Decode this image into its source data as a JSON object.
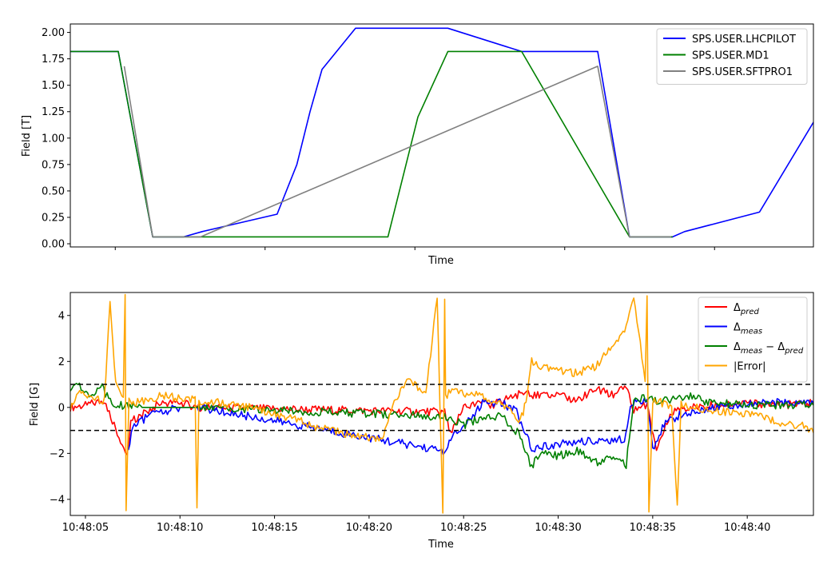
{
  "chart_data": [
    {
      "type": "line",
      "title": "",
      "xlabel": "Time",
      "ylabel": "Field [T]",
      "ylim": [
        -0.03,
        2.08
      ],
      "y_ticks": [
        "0.00",
        "0.25",
        "0.50",
        "0.75",
        "1.00",
        "1.25",
        "1.50",
        "1.75",
        "2.00"
      ],
      "x_tick_labels_shown": false,
      "legend_position": "top-right",
      "series": [
        {
          "name": "SPS.USER.LHCPILOT",
          "color": "#0000ff",
          "x": [
            0,
            1.6,
            2.75,
            2.76,
            3.78,
            4.4,
            6.9,
            7.56,
            8.0,
            8.4,
            9.52,
            12.6,
            15.06,
            17.6,
            18.66,
            20.1,
            20.5,
            23.0,
            24.8
          ],
          "y": [
            1.82,
            1.82,
            0.065,
            0.065,
            0.065,
            0.115,
            0.28,
            0.75,
            1.25,
            1.65,
            2.04,
            2.04,
            1.82,
            1.82,
            0.065,
            0.065,
            0.115,
            0.3,
            1.15
          ]
        },
        {
          "name": "SPS.USER.MD1",
          "color": "#008000",
          "x": [
            0,
            1.6,
            2.75,
            10.4,
            10.6,
            11.6,
            12.6,
            15.06,
            18.66,
            20.1
          ],
          "y": [
            1.82,
            1.82,
            0.065,
            0.065,
            0.065,
            1.2,
            1.82,
            1.82,
            0.065,
            0.065
          ]
        },
        {
          "name": "SPS.USER.SFTPRO1",
          "color": "#808080",
          "x": [
            1.8,
            2.75,
            4.35,
            17.6,
            18.66,
            20.05
          ],
          "y": [
            1.68,
            0.065,
            0.065,
            1.68,
            0.065,
            0.065
          ]
        }
      ]
    },
    {
      "type": "line",
      "title": "",
      "xlabel": "Time",
      "ylabel": "Field [G]",
      "ylim": [
        -4.7,
        5.0
      ],
      "y_ticks": [
        "−4",
        "−2",
        "0",
        "2",
        "4"
      ],
      "x_tick_labels": [
        "10:48:05",
        "10:48:10",
        "10:48:15",
        "10:48:20",
        "10:48:25",
        "10:48:30",
        "10:48:35",
        "10:48:40"
      ],
      "x_ticks_seconds": [
        5,
        10,
        15,
        20,
        25,
        30,
        35,
        40
      ],
      "xlim_seconds": [
        4.2,
        43.5
      ],
      "reference_lines": [
        1,
        -1
      ],
      "legend_position": "top-right",
      "series": [
        {
          "name": "Δpred",
          "name_base": "Δ",
          "name_sub": "pred",
          "color": "#ff0000",
          "x": [
            4.2,
            5.0,
            6.0,
            7.2,
            7.4,
            8.0,
            9.0,
            10.0,
            11.0,
            24.0,
            24.3,
            25.0,
            26.0,
            26.5,
            27.0,
            28.0,
            29.0,
            30.0,
            31.0,
            32.0,
            33.0,
            33.6,
            34.0,
            34.7,
            35.2,
            36.0,
            37.0,
            38.0,
            40.0,
            42.0,
            43.5
          ],
          "y": [
            0.0,
            0.1,
            0.3,
            -2.1,
            -0.6,
            -0.3,
            0.2,
            0.2,
            0.0,
            -0.2,
            -1.2,
            0.0,
            0.2,
            0.1,
            0.3,
            0.6,
            0.5,
            0.5,
            0.3,
            0.8,
            0.5,
            1.0,
            -0.1,
            0.1,
            -1.8,
            -0.2,
            0.0,
            0.1,
            0.2,
            0.1,
            0.2
          ]
        },
        {
          "name": "Δmeas",
          "name_base": "Δ",
          "name_sub": "meas",
          "color": "#0000ff",
          "x": [
            7.2,
            7.5,
            8.0,
            8.5,
            9.0,
            10.0,
            11.0,
            24.0,
            24.4,
            25.0,
            26.0,
            27.0,
            27.8,
            28.6,
            29.0,
            30.0,
            31.0,
            32.0,
            33.5,
            33.9,
            34.7,
            35.0,
            35.6,
            36.5,
            37.5,
            40.0,
            43.5
          ],
          "y": [
            -2.0,
            -0.9,
            -0.55,
            -0.35,
            -0.2,
            0.0,
            0.0,
            -1.9,
            -1.2,
            -0.9,
            0.2,
            0.2,
            -0.2,
            -1.8,
            -1.7,
            -1.6,
            -1.5,
            -1.45,
            -1.4,
            0.2,
            0.2,
            -1.8,
            -0.7,
            -0.3,
            -0.1,
            0.2,
            0.2
          ]
        },
        {
          "name": "Δmeas − Δpred",
          "name_base": "Δ",
          "name_sub": "meas",
          "name_mid": " − Δ",
          "name_sub2": "pred",
          "color": "#008000",
          "x": [
            4.2,
            4.6,
            5.2,
            5.8,
            6.4,
            7.2,
            8.0,
            9.0,
            10.0,
            11.0,
            24.0,
            24.4,
            25.0,
            26.0,
            27.0,
            28.0,
            28.6,
            29.0,
            30.0,
            31.0,
            32.0,
            33.0,
            33.6,
            34.0,
            34.7,
            35.3,
            36.0,
            37.0,
            38.0,
            40.0,
            42.0,
            43.5
          ],
          "y": [
            0.6,
            1.1,
            0.4,
            1.0,
            0.1,
            0.1,
            0.0,
            0.0,
            0.0,
            0.0,
            -0.4,
            -0.5,
            -0.8,
            -0.4,
            -0.4,
            -1.2,
            -2.6,
            -2.0,
            -2.1,
            -1.9,
            -2.4,
            -2.1,
            -2.5,
            0.3,
            0.4,
            0.3,
            0.3,
            0.5,
            0.2,
            0.1,
            0.1,
            0.1
          ]
        },
        {
          "name": "|Error|",
          "color": "#ffa500",
          "x": [
            4.2,
            4.7,
            5.5,
            6.0,
            6.3,
            6.6,
            7.0,
            7.1,
            7.15,
            7.3,
            7.6,
            8.0,
            9.0,
            10.0,
            10.8,
            10.9,
            11.0,
            12.0,
            13.0,
            14.0,
            15.0,
            16.0,
            17.0,
            18.0,
            19.0,
            20.0,
            20.7,
            21.0,
            21.5,
            22.0,
            23.0,
            23.6,
            23.9,
            24.0,
            24.05,
            24.3,
            25.0,
            26.0,
            27.0,
            28.0,
            28.3,
            28.6,
            29.0,
            30.0,
            31.0,
            32.0,
            33.0,
            33.6,
            34.0,
            34.6,
            34.7,
            34.8,
            35.0,
            35.5,
            36.0,
            36.3,
            36.5,
            37.0,
            38.0,
            39.0,
            40.0,
            41.0,
            42.0,
            43.0,
            43.5
          ],
          "y": [
            0.0,
            0.6,
            0.4,
            0.3,
            4.6,
            1.0,
            0.3,
            5.0,
            -4.6,
            0.3,
            0.2,
            0.3,
            0.5,
            0.4,
            0.3,
            -4.4,
            0.3,
            0.2,
            0.1,
            0.0,
            -0.3,
            -0.5,
            -0.8,
            -1.0,
            -1.2,
            -1.3,
            -1.5,
            -0.6,
            0.5,
            1.2,
            0.6,
            4.8,
            -4.6,
            4.6,
            0.5,
            0.7,
            0.6,
            0.5,
            0.2,
            -0.6,
            0.2,
            2.0,
            1.8,
            1.6,
            1.5,
            1.8,
            2.8,
            3.5,
            4.8,
            1.2,
            5.0,
            -4.6,
            0.3,
            0.2,
            0.1,
            -4.2,
            0.1,
            0.0,
            -0.1,
            -0.2,
            -0.3,
            -0.5,
            -0.7,
            -0.8,
            -1.1
          ]
        }
      ]
    }
  ]
}
